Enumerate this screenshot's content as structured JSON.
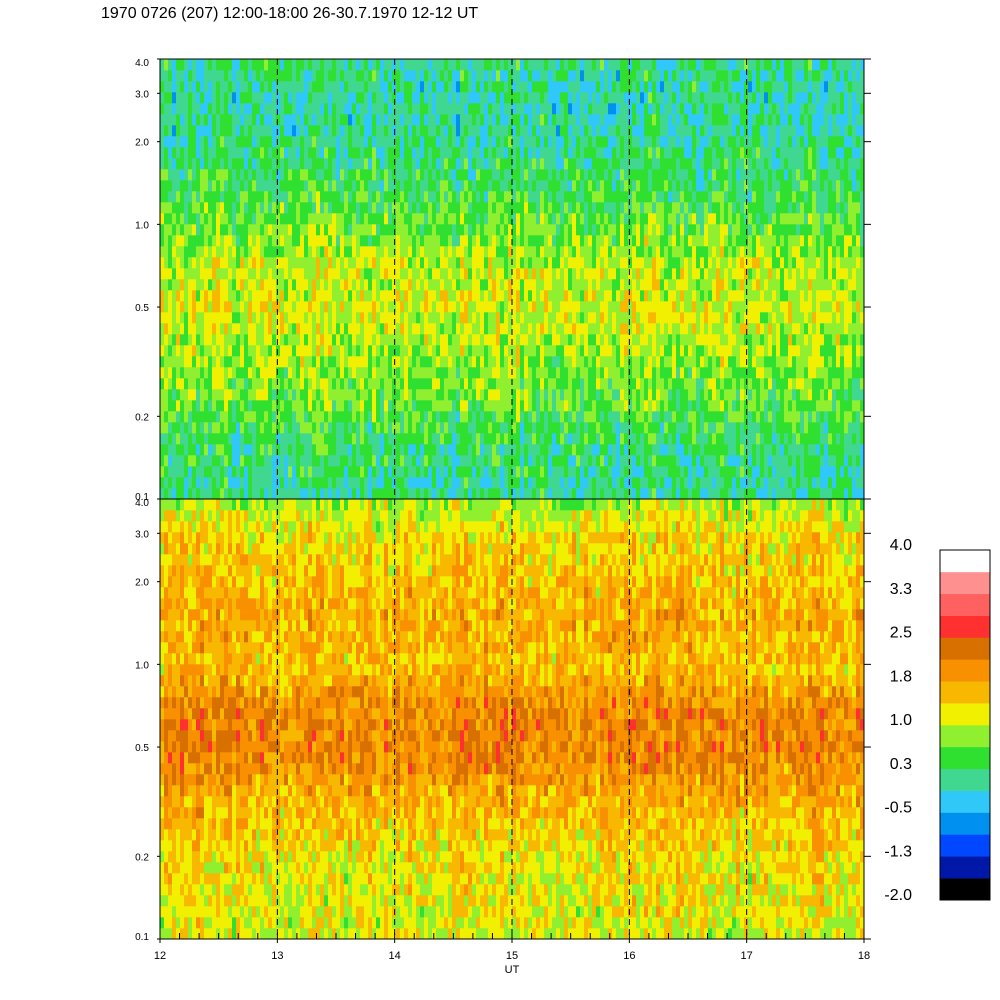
{
  "chart_data": {
    "type": "heatmap",
    "title": "1970 0726 (207) 12:00-18:00 26-30.7.1970  12-12 UT",
    "xlabel": "UT",
    "xlim": [
      12,
      18
    ],
    "x_ticks": [
      "12",
      "13",
      "14",
      "15",
      "16",
      "17",
      "18"
    ],
    "x_dashed_lines": [
      13,
      14,
      15,
      16,
      17
    ],
    "y_scale": "log",
    "ylim": [
      0.1,
      4.0
    ],
    "y_ticks": [
      {
        "value": 0.1,
        "label": "0.1"
      },
      {
        "value": 0.2,
        "label": "0.2"
      },
      {
        "value": 0.5,
        "label": "0.5"
      },
      {
        "value": 1.0,
        "label": "1.0"
      },
      {
        "value": 2.0,
        "label": "2.0"
      },
      {
        "value": 3.0,
        "label": "3.0"
      },
      {
        "value": 4.0,
        "label": "4.0"
      }
    ],
    "panels": [
      {
        "name": "top",
        "profile": [
          {
            "y": 0.1,
            "value": 0.1
          },
          {
            "y": 0.15,
            "value": 0.2
          },
          {
            "y": 0.2,
            "value": 0.5
          },
          {
            "y": 0.3,
            "value": 0.8
          },
          {
            "y": 0.5,
            "value": 1.1
          },
          {
            "y": 0.7,
            "value": 1.0
          },
          {
            "y": 1.0,
            "value": 0.6
          },
          {
            "y": 1.5,
            "value": 0.3
          },
          {
            "y": 2.0,
            "value": 0.1
          },
          {
            "y": 3.0,
            "value": 0.0
          },
          {
            "y": 4.0,
            "value": 0.2
          }
        ]
      },
      {
        "name": "bottom",
        "profile": [
          {
            "y": 0.1,
            "value": 1.1
          },
          {
            "y": 0.2,
            "value": 1.3
          },
          {
            "y": 0.3,
            "value": 1.6
          },
          {
            "y": 0.5,
            "value": 2.1
          },
          {
            "y": 0.7,
            "value": 2.0
          },
          {
            "y": 1.0,
            "value": 1.5
          },
          {
            "y": 1.5,
            "value": 1.7
          },
          {
            "y": 2.0,
            "value": 1.5
          },
          {
            "y": 3.0,
            "value": 1.3
          },
          {
            "y": 4.0,
            "value": 0.8
          }
        ]
      }
    ],
    "colorbar": {
      "labels": [
        "4.0",
        "3.3",
        "2.5",
        "1.8",
        "1.0",
        "0.3",
        "-0.5",
        "-1.3",
        "-2.0"
      ],
      "range": [
        -2.0,
        4.0
      ],
      "colors_bottom_to_top": [
        "#000000",
        "#0018a8",
        "#0048ff",
        "#0090f0",
        "#30c8f8",
        "#40d890",
        "#30e030",
        "#90f030",
        "#f0f000",
        "#f8b800",
        "#f89000",
        "#d87000",
        "#ff3030",
        "#ff6060",
        "#ff9090",
        "#ffffff"
      ]
    }
  }
}
